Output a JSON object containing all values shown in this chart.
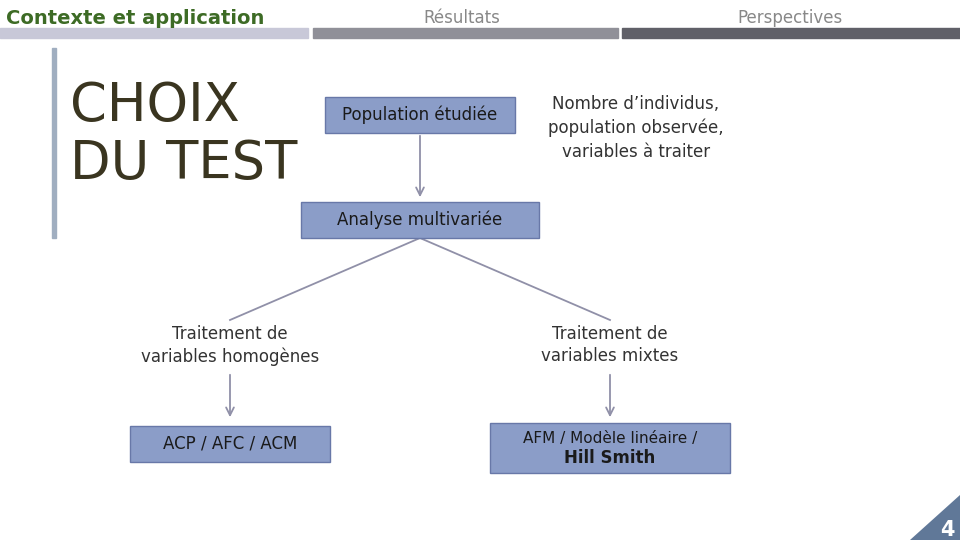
{
  "bg_color": "#ffffff",
  "header_bar1_color": "#c8c8d8",
  "header_bar2_color": "#606068",
  "header_text_contexte": "Contexte et application",
  "header_text_resultats": "Résultats",
  "header_text_perspectives": "Perspectives",
  "header_contexte_color": "#3d6b25",
  "header_resultats_color": "#888888",
  "header_perspectives_color": "#888888",
  "left_bar_color": "#a0aec0",
  "choix_color": "#3a3520",
  "title_choix": "CHOIX\nDU TEST",
  "box_fill": "#8b9dc8",
  "box_edge": "#6878a8",
  "box_population": "Population étudiée",
  "box_analyse": "Analyse multivariée",
  "box_homogenes": "Traitement de\nvariables homogènes",
  "box_mixtes": "Traitement de\nvariables mixtes",
  "box_acp": "ACP / AFC / ACM",
  "box_afm_line1": "AFM / Modèle linéaire /",
  "box_afm_line2": "Hill Smith",
  "text_nombre": "Nombre d’individus,\npopulation observée,\nvariables à traiter",
  "arrow_color": "#9090a8",
  "page_number": "4",
  "page_number_bg": "#607898"
}
